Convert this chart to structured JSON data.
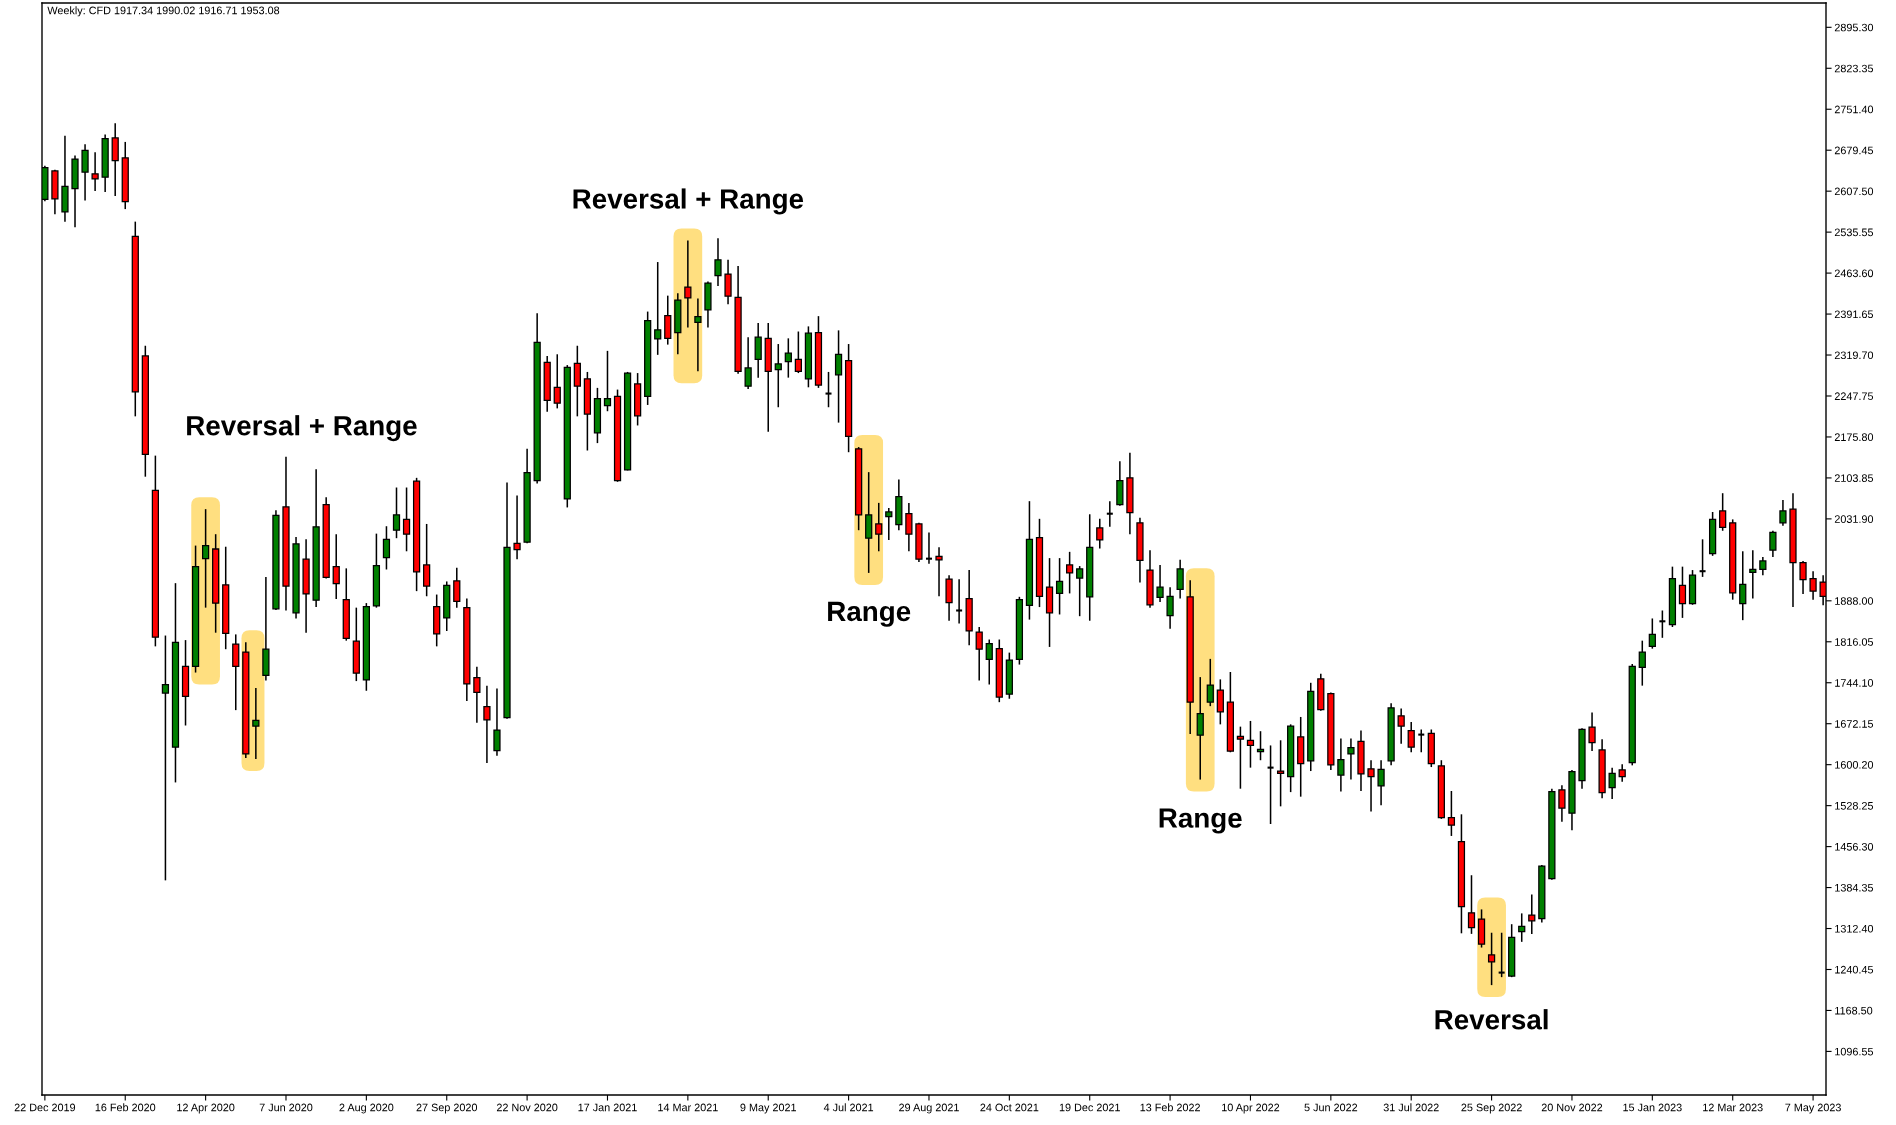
{
  "chart_data": {
    "type": "candlestick",
    "title": "Weekly: CFD 1917.34 1990.02 1916.71 1953.08",
    "x": [
      "2019-12-22",
      "2019-12-29",
      "2020-01-05",
      "2020-01-12",
      "2020-01-19",
      "2020-01-26",
      "2020-02-02",
      "2020-02-09",
      "2020-02-16",
      "2020-02-23",
      "2020-03-01",
      "2020-03-08",
      "2020-03-15",
      "2020-03-22",
      "2020-03-29",
      "2020-04-05",
      "2020-04-12",
      "2020-04-19",
      "2020-04-26",
      "2020-05-03",
      "2020-05-10",
      "2020-05-17",
      "2020-05-24",
      "2020-05-31",
      "2020-06-07",
      "2020-06-14",
      "2020-06-21",
      "2020-06-28",
      "2020-07-05",
      "2020-07-12",
      "2020-07-19",
      "2020-07-26",
      "2020-08-02",
      "2020-08-09",
      "2020-08-16",
      "2020-08-23",
      "2020-08-30",
      "2020-09-06",
      "2020-09-13",
      "2020-09-20",
      "2020-09-27",
      "2020-10-04",
      "2020-10-11",
      "2020-10-18",
      "2020-10-25",
      "2020-11-01",
      "2020-11-08",
      "2020-11-15",
      "2020-11-22",
      "2020-11-29",
      "2020-12-06",
      "2020-12-13",
      "2020-12-20",
      "2020-12-27",
      "2021-01-03",
      "2021-01-10",
      "2021-01-17",
      "2021-01-24",
      "2021-01-31",
      "2021-02-07",
      "2021-02-14",
      "2021-02-21",
      "2021-02-28",
      "2021-03-07",
      "2021-03-14",
      "2021-03-21",
      "2021-03-28",
      "2021-04-04",
      "2021-04-11",
      "2021-04-18",
      "2021-04-25",
      "2021-05-02",
      "2021-05-09",
      "2021-05-16",
      "2021-05-23",
      "2021-05-30",
      "2021-06-06",
      "2021-06-13",
      "2021-06-20",
      "2021-06-27",
      "2021-07-04",
      "2021-07-11",
      "2021-07-18",
      "2021-07-25",
      "2021-08-01",
      "2021-08-08",
      "2021-08-15",
      "2021-08-22",
      "2021-08-29",
      "2021-09-05",
      "2021-09-12",
      "2021-09-19",
      "2021-09-26",
      "2021-10-03",
      "2021-10-10",
      "2021-10-17",
      "2021-10-24",
      "2021-10-31",
      "2021-11-07",
      "2021-11-14",
      "2021-11-21",
      "2021-11-28",
      "2021-12-05",
      "2021-12-12",
      "2021-12-19",
      "2021-12-26",
      "2022-01-02",
      "2022-01-09",
      "2022-01-16",
      "2022-01-23",
      "2022-01-30",
      "2022-02-06",
      "2022-02-13",
      "2022-02-20",
      "2022-02-27",
      "2022-03-06",
      "2022-03-13",
      "2022-03-20",
      "2022-03-27",
      "2022-04-03",
      "2022-04-10",
      "2022-04-17",
      "2022-04-24",
      "2022-05-01",
      "2022-05-08",
      "2022-05-15",
      "2022-05-22",
      "2022-05-29",
      "2022-06-05",
      "2022-06-12",
      "2022-06-19",
      "2022-06-26",
      "2022-07-03",
      "2022-07-10",
      "2022-07-17",
      "2022-07-24",
      "2022-07-31",
      "2022-08-07",
      "2022-08-14",
      "2022-08-21",
      "2022-08-28",
      "2022-09-04",
      "2022-09-11",
      "2022-09-18",
      "2022-09-25",
      "2022-10-02",
      "2022-10-09",
      "2022-10-16",
      "2022-10-23",
      "2022-10-30",
      "2022-11-06",
      "2022-11-13",
      "2022-11-20",
      "2022-11-27",
      "2022-12-04",
      "2022-12-11",
      "2022-12-18",
      "2022-12-25",
      "2023-01-01",
      "2023-01-08",
      "2023-01-15",
      "2023-01-22",
      "2023-01-29",
      "2023-02-05",
      "2023-02-12",
      "2023-02-19",
      "2023-02-26",
      "2023-03-05",
      "2023-03-12",
      "2023-03-19",
      "2023-03-26",
      "2023-04-02",
      "2023-04-09",
      "2023-04-16",
      "2023-04-23",
      "2023-04-30",
      "2023-05-07",
      "2023-05-14"
    ],
    "ohlc": [
      [
        2593,
        2652,
        2590,
        2649
      ],
      [
        2643,
        2645,
        2567,
        2594
      ],
      [
        2571,
        2705,
        2554,
        2616
      ],
      [
        2612,
        2670,
        2544,
        2664
      ],
      [
        2641,
        2690,
        2591,
        2679
      ],
      [
        2638,
        2676,
        2608,
        2629
      ],
      [
        2632,
        2707,
        2606,
        2700
      ],
      [
        2701,
        2727,
        2599,
        2661
      ],
      [
        2666,
        2694,
        2576,
        2589
      ],
      [
        2528,
        2554,
        2212,
        2255
      ],
      [
        2318,
        2336,
        2106,
        2145
      ],
      [
        2082,
        2143,
        1808,
        1824
      ],
      [
        1726,
        1827,
        1397,
        1741
      ],
      [
        1631,
        1919,
        1569,
        1815
      ],
      [
        1773,
        1819,
        1669,
        1720
      ],
      [
        1773,
        1985,
        1762,
        1948
      ],
      [
        1962,
        2049,
        1876,
        1985
      ],
      [
        1979,
        2005,
        1832,
        1884
      ],
      [
        1916,
        1983,
        1803,
        1831
      ],
      [
        1812,
        1829,
        1696,
        1773
      ],
      [
        1798,
        1815,
        1612,
        1619
      ],
      [
        1668,
        1735,
        1610,
        1678
      ],
      [
        1757,
        1930,
        1748,
        1803
      ],
      [
        1874,
        2047,
        1872,
        2038
      ],
      [
        2053,
        2141,
        1871,
        1914
      ],
      [
        1867,
        2000,
        1857,
        1988
      ],
      [
        1961,
        1996,
        1832,
        1900
      ],
      [
        1889,
        2119,
        1877,
        2018
      ],
      [
        2057,
        2070,
        1927,
        1929
      ],
      [
        1948,
        2005,
        1891,
        1918
      ],
      [
        1890,
        1945,
        1818,
        1822
      ],
      [
        1817,
        1876,
        1747,
        1761
      ],
      [
        1749,
        1884,
        1730,
        1878
      ],
      [
        1879,
        2006,
        1876,
        1950
      ],
      [
        1964,
        2019,
        1943,
        1996
      ],
      [
        2012,
        2087,
        1998,
        2039
      ],
      [
        2031,
        2087,
        1975,
        2005
      ],
      [
        2098,
        2104,
        1905,
        1939
      ],
      [
        1951,
        2023,
        1896,
        1914
      ],
      [
        1878,
        1899,
        1808,
        1830
      ],
      [
        1858,
        1922,
        1835,
        1915
      ],
      [
        1923,
        1946,
        1876,
        1887
      ],
      [
        1876,
        1892,
        1712,
        1742
      ],
      [
        1753,
        1772,
        1674,
        1727
      ],
      [
        1702,
        1739,
        1603,
        1679
      ],
      [
        1625,
        1734,
        1616,
        1661
      ],
      [
        1683,
        2096,
        1681,
        1982
      ],
      [
        1989,
        2073,
        1961,
        1978
      ],
      [
        1991,
        2155,
        1989,
        2113
      ],
      [
        2099,
        2393,
        2094,
        2342
      ],
      [
        2307,
        2318,
        2220,
        2240
      ],
      [
        2263,
        2321,
        2226,
        2235
      ],
      [
        2067,
        2302,
        2052,
        2298
      ],
      [
        2305,
        2336,
        2212,
        2265
      ],
      [
        2278,
        2290,
        2152,
        2216
      ],
      [
        2183,
        2262,
        2165,
        2243
      ],
      [
        2231,
        2327,
        2221,
        2243
      ],
      [
        2247,
        2259,
        2097,
        2099
      ],
      [
        2118,
        2290,
        2117,
        2288
      ],
      [
        2269,
        2288,
        2196,
        2213
      ],
      [
        2247,
        2396,
        2232,
        2380
      ],
      [
        2348,
        2483,
        2320,
        2364
      ],
      [
        2389,
        2424,
        2338,
        2349
      ],
      [
        2359,
        2428,
        2321,
        2416
      ],
      [
        2439,
        2521,
        2368,
        2420
      ],
      [
        2377,
        2419,
        2291,
        2387
      ],
      [
        2399,
        2449,
        2368,
        2446
      ],
      [
        2459,
        2525,
        2441,
        2487
      ],
      [
        2462,
        2487,
        2409,
        2423
      ],
      [
        2421,
        2476,
        2287,
        2291
      ],
      [
        2265,
        2351,
        2260,
        2297
      ],
      [
        2312,
        2376,
        2280,
        2351
      ],
      [
        2349,
        2376,
        2185,
        2291
      ],
      [
        2294,
        2339,
        2228,
        2304
      ],
      [
        2308,
        2349,
        2280,
        2323
      ],
      [
        2312,
        2361,
        2288,
        2291
      ],
      [
        2278,
        2370,
        2263,
        2358
      ],
      [
        2359,
        2388,
        2262,
        2267
      ],
      [
        2252,
        2290,
        2228,
        2252
      ],
      [
        2285,
        2363,
        2201,
        2321
      ],
      [
        2310,
        2339,
        2149,
        2177
      ],
      [
        2155,
        2158,
        2012,
        2039
      ],
      [
        1998,
        2114,
        1937,
        2039
      ],
      [
        2023,
        2060,
        1975,
        2005
      ],
      [
        2036,
        2051,
        1995,
        2044
      ],
      [
        2022,
        2101,
        2012,
        2071
      ],
      [
        2041,
        2060,
        1975,
        2005
      ],
      [
        2023,
        2025,
        1956,
        1961
      ],
      [
        1962,
        2008,
        1953,
        1962
      ],
      [
        1966,
        1982,
        1896,
        1960
      ],
      [
        1926,
        1933,
        1853,
        1885
      ],
      [
        1871,
        1926,
        1848,
        1871
      ],
      [
        1892,
        1942,
        1810,
        1835
      ],
      [
        1833,
        1842,
        1748,
        1803
      ],
      [
        1785,
        1820,
        1741,
        1813
      ],
      [
        1804,
        1820,
        1710,
        1719
      ],
      [
        1724,
        1797,
        1716,
        1784
      ],
      [
        1785,
        1895,
        1776,
        1890
      ],
      [
        1880,
        2063,
        1855,
        1996
      ],
      [
        1999,
        2032,
        1877,
        1896
      ],
      [
        1912,
        1963,
        1807,
        1867
      ],
      [
        1901,
        1963,
        1864,
        1922
      ],
      [
        1951,
        1974,
        1901,
        1937
      ],
      [
        1928,
        1949,
        1861,
        1944
      ],
      [
        1895,
        2040,
        1853,
        1982
      ],
      [
        2016,
        2032,
        1980,
        1995
      ],
      [
        2041,
        2063,
        2018,
        2041
      ],
      [
        2057,
        2133,
        2055,
        2099
      ],
      [
        2104,
        2148,
        2005,
        2043
      ],
      [
        2025,
        2034,
        1920,
        1959
      ],
      [
        1942,
        1977,
        1876,
        1881
      ],
      [
        1894,
        1951,
        1886,
        1912
      ],
      [
        1862,
        1912,
        1839,
        1896
      ],
      [
        1908,
        1960,
        1892,
        1944
      ],
      [
        1895,
        1924,
        1654,
        1710
      ],
      [
        1652,
        1754,
        1574,
        1690
      ],
      [
        1710,
        1786,
        1703,
        1740
      ],
      [
        1731,
        1750,
        1671,
        1693
      ],
      [
        1710,
        1763,
        1622,
        1624
      ],
      [
        1650,
        1667,
        1558,
        1645
      ],
      [
        1643,
        1677,
        1595,
        1634
      ],
      [
        1623,
        1659,
        1608,
        1627
      ],
      [
        1595,
        1634,
        1496,
        1595
      ],
      [
        1589,
        1643,
        1527,
        1585
      ],
      [
        1579,
        1671,
        1552,
        1668
      ],
      [
        1649,
        1684,
        1544,
        1602
      ],
      [
        1607,
        1744,
        1589,
        1729
      ],
      [
        1751,
        1760,
        1695,
        1697
      ],
      [
        1725,
        1727,
        1591,
        1600
      ],
      [
        1582,
        1646,
        1553,
        1609
      ],
      [
        1619,
        1646,
        1574,
        1630
      ],
      [
        1641,
        1660,
        1554,
        1584
      ],
      [
        1593,
        1608,
        1518,
        1579
      ],
      [
        1563,
        1608,
        1529,
        1592
      ],
      [
        1607,
        1708,
        1599,
        1700
      ],
      [
        1686,
        1699,
        1637,
        1668
      ],
      [
        1660,
        1675,
        1622,
        1631
      ],
      [
        1653,
        1662,
        1622,
        1653
      ],
      [
        1655,
        1662,
        1596,
        1602
      ],
      [
        1598,
        1608,
        1505,
        1507
      ],
      [
        1507,
        1554,
        1475,
        1494
      ],
      [
        1465,
        1513,
        1304,
        1351
      ],
      [
        1340,
        1406,
        1303,
        1314
      ],
      [
        1329,
        1346,
        1279,
        1285
      ],
      [
        1266,
        1305,
        1213,
        1254
      ],
      [
        1235,
        1305,
        1227,
        1235
      ],
      [
        1229,
        1320,
        1227,
        1297
      ],
      [
        1307,
        1339,
        1289,
        1316
      ],
      [
        1336,
        1372,
        1303,
        1326
      ],
      [
        1330,
        1424,
        1323,
        1422
      ],
      [
        1400,
        1558,
        1398,
        1553
      ],
      [
        1556,
        1564,
        1500,
        1524
      ],
      [
        1515,
        1591,
        1485,
        1588
      ],
      [
        1572,
        1664,
        1558,
        1662
      ],
      [
        1666,
        1692,
        1624,
        1639
      ],
      [
        1626,
        1645,
        1541,
        1551
      ],
      [
        1560,
        1595,
        1540,
        1585
      ],
      [
        1591,
        1601,
        1570,
        1579
      ],
      [
        1604,
        1777,
        1599,
        1773
      ],
      [
        1771,
        1818,
        1739,
        1798
      ],
      [
        1808,
        1857,
        1804,
        1829
      ],
      [
        1852,
        1871,
        1823,
        1852
      ],
      [
        1846,
        1948,
        1842,
        1927
      ],
      [
        1915,
        1948,
        1858,
        1883
      ],
      [
        1883,
        1942,
        1881,
        1933
      ],
      [
        1940,
        1996,
        1930,
        1940
      ],
      [
        1971,
        2044,
        1967,
        2031
      ],
      [
        2046,
        2077,
        2011,
        2017
      ],
      [
        2025,
        2031,
        1890,
        1902
      ],
      [
        1883,
        1975,
        1854,
        1917
      ],
      [
        1938,
        1977,
        1892,
        1943
      ],
      [
        1943,
        1965,
        1933,
        1958
      ],
      [
        1977,
        2011,
        1965,
        2008
      ],
      [
        2025,
        2065,
        2020,
        2046
      ],
      [
        2049,
        2077,
        1877,
        1955
      ],
      [
        1955,
        1958,
        1900,
        1925
      ],
      [
        1927,
        1940,
        1890,
        1905
      ],
      [
        1921,
        1933,
        1880,
        1896
      ]
    ],
    "colors": [
      "#008000",
      "#ff0000",
      "#008000",
      "#008000",
      "#008000",
      "#ff0000",
      "#008000",
      "#ff0000",
      "#ff0000",
      "#ff0000",
      "#ff0000",
      "#ff0000",
      "#008000",
      "#008000",
      "#ff0000",
      "#008000",
      "#008000",
      "#ff0000",
      "#ff0000",
      "#ff0000",
      "#ff0000",
      "#008000",
      "#008000",
      "#008000",
      "#ff0000",
      "#008000",
      "#ff0000",
      "#008000",
      "#ff0000",
      "#ff0000",
      "#ff0000",
      "#ff0000",
      "#008000",
      "#008000",
      "#008000",
      "#008000",
      "#ff0000",
      "#ff0000",
      "#ff0000",
      "#ff0000",
      "#008000",
      "#ff0000",
      "#ff0000",
      "#ff0000",
      "#ff0000",
      "#008000",
      "#008000",
      "#ff0000",
      "#008000",
      "#008000",
      "#ff0000",
      "#ff0000",
      "#008000",
      "#ff0000",
      "#ff0000",
      "#008000",
      "#008000",
      "#ff0000",
      "#008000",
      "#ff0000",
      "#008000",
      "#008000",
      "#ff0000",
      "#008000",
      "#ff0000",
      "#008000",
      "#008000",
      "#008000",
      "#ff0000",
      "#ff0000",
      "#008000",
      "#008000",
      "#ff0000",
      "#008000",
      "#008000",
      "#ff0000",
      "#008000",
      "#ff0000",
      "#000000",
      "#008000",
      "#ff0000",
      "#ff0000",
      "#008000",
      "#ff0000",
      "#008000",
      "#008000",
      "#ff0000",
      "#ff0000",
      "#000000",
      "#ff0000",
      "#ff0000",
      "#000000",
      "#ff0000",
      "#ff0000",
      "#008000",
      "#ff0000",
      "#008000",
      "#008000",
      "#008000",
      "#ff0000",
      "#ff0000",
      "#008000",
      "#ff0000",
      "#008000",
      "#008000",
      "#ff0000",
      "#000000",
      "#008000",
      "#ff0000",
      "#ff0000",
      "#ff0000",
      "#008000",
      "#008000",
      "#008000",
      "#ff0000",
      "#008000",
      "#008000",
      "#ff0000",
      "#ff0000",
      "#ff0000",
      "#ff0000",
      "#008000",
      "#000000",
      "#ff0000",
      "#008000",
      "#ff0000",
      "#008000",
      "#ff0000",
      "#ff0000",
      "#008000",
      "#008000",
      "#ff0000",
      "#ff0000",
      "#008000",
      "#008000",
      "#ff0000",
      "#ff0000",
      "#000000",
      "#ff0000",
      "#ff0000",
      "#ff0000",
      "#ff0000",
      "#ff0000",
      "#ff0000",
      "#ff0000",
      "#000000",
      "#008000",
      "#008000",
      "#ff0000",
      "#008000",
      "#008000",
      "#ff0000",
      "#008000",
      "#008000",
      "#ff0000",
      "#ff0000",
      "#008000",
      "#ff0000",
      "#008000",
      "#008000",
      "#008000",
      "#000000",
      "#008000",
      "#ff0000",
      "#008000",
      "#000000",
      "#008000",
      "#ff0000",
      "#ff0000",
      "#008000",
      "#008000",
      "#008000",
      "#008000",
      "#008000",
      "#ff0000",
      "#ff0000",
      "#ff0000",
      "#ff0000"
    ],
    "xlim": [
      "2019-12-20",
      "2023-05-16"
    ],
    "xticks": [
      {
        "value": "2019-12-22",
        "label": "22 Dec 2019"
      },
      {
        "value": "2020-02-16",
        "label": "16 Feb 2020"
      },
      {
        "value": "2020-04-12",
        "label": "12 Apr 2020"
      },
      {
        "value": "2020-06-07",
        "label": "7 Jun 2020"
      },
      {
        "value": "2020-08-02",
        "label": "2 Aug 2020"
      },
      {
        "value": "2020-09-27",
        "label": "27 Sep 2020"
      },
      {
        "value": "2020-11-22",
        "label": "22 Nov 2020"
      },
      {
        "value": "2021-01-17",
        "label": "17 Jan 2021"
      },
      {
        "value": "2021-03-14",
        "label": "14 Mar 2021"
      },
      {
        "value": "2021-05-09",
        "label": "9 May 2021"
      },
      {
        "value": "2021-07-04",
        "label": "4 Jul 2021"
      },
      {
        "value": "2021-08-29",
        "label": "29 Aug 2021"
      },
      {
        "value": "2021-10-24",
        "label": "24 Oct 2021"
      },
      {
        "value": "2021-12-19",
        "label": "19 Dec 2021"
      },
      {
        "value": "2022-02-13",
        "label": "13 Feb 2022"
      },
      {
        "value": "2022-04-10",
        "label": "10 Apr 2022"
      },
      {
        "value": "2022-06-05",
        "label": "5 Jun 2022"
      },
      {
        "value": "2022-07-31",
        "label": "31 Jul 2022"
      },
      {
        "value": "2022-09-25",
        "label": "25 Sep 2022"
      },
      {
        "value": "2022-11-20",
        "label": "20 Nov 2022"
      },
      {
        "value": "2023-01-15",
        "label": "15 Jan 2023"
      },
      {
        "value": "2023-03-12",
        "label": "12 Mar 2023"
      },
      {
        "value": "2023-05-07",
        "label": "7 May 2023"
      }
    ],
    "ylim": [
      1020,
      2938
    ],
    "yticks": [
      {
        "value": 2895.3,
        "label": "2895.30"
      },
      {
        "value": 2823.35,
        "label": "2823.35"
      },
      {
        "value": 2751.4,
        "label": "2751.40"
      },
      {
        "value": 2679.45,
        "label": "2679.45"
      },
      {
        "value": 2607.5,
        "label": "2607.50"
      },
      {
        "value": 2535.55,
        "label": "2535.55"
      },
      {
        "value": 2463.6,
        "label": "2463.60"
      },
      {
        "value": 2391.65,
        "label": "2391.65"
      },
      {
        "value": 2319.7,
        "label": "2319.70"
      },
      {
        "value": 2247.75,
        "label": "2247.75"
      },
      {
        "value": 2175.8,
        "label": "2175.80"
      },
      {
        "value": 2103.85,
        "label": "2103.85"
      },
      {
        "value": 2031.9,
        "label": "2031.90"
      },
      {
        "value": 1888,
        "label": "1888.00"
      },
      {
        "value": 1816.05,
        "label": "1816.05"
      },
      {
        "value": 1744.1,
        "label": "1744.10"
      },
      {
        "value": 1672.15,
        "label": "1672.15"
      },
      {
        "value": 1600.2,
        "label": "1600.20"
      },
      {
        "value": 1528.25,
        "label": "1528.25"
      },
      {
        "value": 1456.3,
        "label": "1456.30"
      },
      {
        "value": 1384.35,
        "label": "1384.35"
      },
      {
        "value": 1312.4,
        "label": "1312.40"
      },
      {
        "value": 1240.45,
        "label": "1240.45"
      },
      {
        "value": 1168.5,
        "label": "1168.50"
      },
      {
        "value": 1096.55,
        "label": "1096.55"
      }
    ],
    "bands": [
      {
        "axis": "x",
        "from": "2020-04-02",
        "to": "2020-04-22",
        "color": "#ffdf80",
        "label": "Reversal + Range"
      },
      {
        "axis": "x",
        "from": "2020-05-07",
        "to": "2020-05-23",
        "color": "#ffdf80"
      },
      {
        "axis": "x",
        "from": "2021-03-04",
        "to": "2021-03-24",
        "color": "#ffdf80",
        "label": "Reversal + Range"
      },
      {
        "axis": "x",
        "from": "2021-07-08",
        "to": "2021-07-28",
        "color": "#ffdf80",
        "label": "Range"
      },
      {
        "axis": "x",
        "from": "2022-02-24",
        "to": "2022-03-16",
        "color": "#ffdf80",
        "label": "Range"
      },
      {
        "axis": "x",
        "from": "2022-09-15",
        "to": "2022-10-05",
        "color": "#ffdf80",
        "label": "Reversal"
      }
    ]
  }
}
